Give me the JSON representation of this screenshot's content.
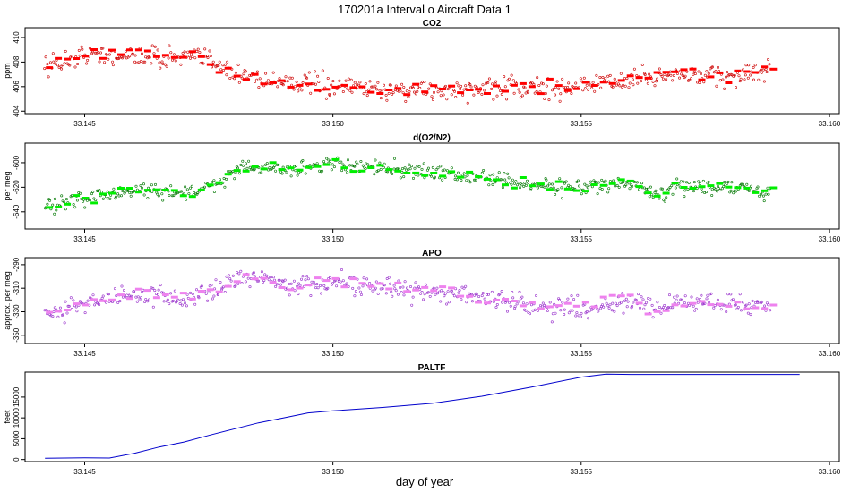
{
  "title": "170201a   Interval o Aircraft Data 1",
  "x_axis_label": "day of year",
  "x_ticks": [
    33.145,
    33.15,
    33.155,
    33.16
  ],
  "x_tick_labels": [
    "33.145",
    "33.150",
    "33.155",
    "33.160"
  ],
  "chart_data": [
    {
      "type": "scatter",
      "title": "CO2",
      "ylabel": "ppm",
      "color": "#ff0000",
      "point_color": "#cc0000",
      "xlim": [
        33.1438,
        33.1602
      ],
      "ylim": [
        403.8,
        410.8
      ],
      "yticks": [
        404,
        406,
        408,
        410
      ],
      "ytick_labels": [
        "404",
        "406",
        "408",
        "410"
      ],
      "x_range": [
        33.1442,
        33.1588
      ],
      "profile_x": [
        33.1442,
        33.145,
        33.146,
        33.147,
        33.1476,
        33.148,
        33.149,
        33.15,
        33.151,
        33.152,
        33.153,
        33.154,
        33.155,
        33.156,
        33.157,
        33.158,
        33.1588
      ],
      "profile_y": [
        407.6,
        408.6,
        408.5,
        408.4,
        408.2,
        407.0,
        406.4,
        406.0,
        405.8,
        405.7,
        405.8,
        405.9,
        406.0,
        406.6,
        407.0,
        406.8,
        407.2
      ],
      "noise": 0.8
    },
    {
      "type": "scatter",
      "title": "d(O2/N2)",
      "ylabel": "per meg",
      "color": "#00ee00",
      "point_color": "#007700",
      "xlim": [
        33.1438,
        33.1602
      ],
      "ylim": [
        -654,
        -584
      ],
      "yticks": [
        -640,
        -620,
        -600
      ],
      "ytick_labels": [
        "-640",
        "-620",
        "-600"
      ],
      "x_range": [
        33.1442,
        33.1588
      ],
      "profile_x": [
        33.1442,
        33.145,
        33.146,
        33.147,
        33.1476,
        33.1482,
        33.149,
        33.15,
        33.151,
        33.152,
        33.153,
        33.154,
        33.155,
        33.156,
        33.1565,
        33.157,
        33.158,
        33.1588
      ],
      "profile_y": [
        -636,
        -630,
        -622,
        -626,
        -618,
        -602,
        -605,
        -602,
        -604,
        -608,
        -612,
        -618,
        -620,
        -616,
        -626,
        -620,
        -620,
        -624
      ],
      "noise": 6
    },
    {
      "type": "scatter",
      "title": "APO",
      "ylabel": "approx. per meg",
      "color": "#ee82ee",
      "point_color": "#9932cc",
      "xlim": [
        33.1438,
        33.1602
      ],
      "ylim": [
        -357,
        -284
      ],
      "yticks": [
        -350,
        -330,
        -310,
        -290
      ],
      "ytick_labels": [
        "-350",
        "-330",
        "-310",
        "-290"
      ],
      "x_range": [
        33.1442,
        33.1588
      ],
      "profile_x": [
        33.1442,
        33.145,
        33.146,
        33.147,
        33.1476,
        33.1482,
        33.149,
        33.15,
        33.151,
        33.152,
        33.153,
        33.154,
        33.155,
        33.156,
        33.1565,
        33.157,
        33.158,
        33.1588
      ],
      "profile_y": [
        -333,
        -322,
        -315,
        -320,
        -312,
        -297,
        -308,
        -305,
        -310,
        -315,
        -317,
        -325,
        -327,
        -320,
        -330,
        -322,
        -323,
        -327
      ],
      "noise": 8
    },
    {
      "type": "line",
      "title": "PALTF",
      "ylabel": "feet",
      "color": "#0000cc",
      "xlim": [
        33.1438,
        33.1602
      ],
      "ylim": [
        -500,
        21000
      ],
      "yticks": [
        0,
        5000,
        10000,
        15000
      ],
      "ytick_labels": [
        "0",
        "5000",
        "10000",
        "15000"
      ],
      "x": [
        33.1442,
        33.145,
        33.1455,
        33.146,
        33.1465,
        33.147,
        33.1475,
        33.148,
        33.1485,
        33.149,
        33.1495,
        33.15,
        33.151,
        33.152,
        33.153,
        33.154,
        33.155,
        33.1555,
        33.156,
        33.157,
        33.158,
        33.159,
        33.1594
      ],
      "y": [
        300,
        400,
        350,
        1500,
        3000,
        4200,
        5800,
        7300,
        8800,
        10000,
        11200,
        11700,
        12500,
        13500,
        15200,
        17400,
        19800,
        20500,
        20450,
        20450,
        20450,
        20450,
        20450
      ]
    }
  ]
}
